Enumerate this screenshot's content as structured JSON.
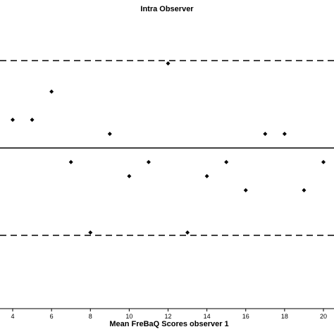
{
  "chart_data": {
    "type": "scatter",
    "title": "Intra Observer",
    "xlabel": "Mean FreBaQ Scores observer 1",
    "ylabel": "",
    "xlim": [
      3.4,
      20.3
    ],
    "ylim": [
      -6.0,
      6.0
    ],
    "x_ticks": [
      4,
      6,
      8,
      10,
      12,
      14,
      16,
      18,
      20
    ],
    "x_tick_labels": [
      "4",
      "6",
      "8",
      "10",
      "12",
      "14",
      "16",
      "18",
      "20"
    ],
    "reference_lines": [
      {
        "kind": "mean",
        "y": 0,
        "style": "solid"
      },
      {
        "kind": "upper-limit",
        "y": 3.1,
        "style": "dashed"
      },
      {
        "kind": "lower-limit",
        "y": -3.1,
        "style": "dashed"
      }
    ],
    "points": [
      {
        "x": 4,
        "y": 1
      },
      {
        "x": 5,
        "y": 1
      },
      {
        "x": 6,
        "y": 2
      },
      {
        "x": 7,
        "y": -0.5
      },
      {
        "x": 8,
        "y": -3
      },
      {
        "x": 9,
        "y": 0.5
      },
      {
        "x": 10,
        "y": -1
      },
      {
        "x": 11,
        "y": -0.5
      },
      {
        "x": 12,
        "y": 3
      },
      {
        "x": 13,
        "y": -3
      },
      {
        "x": 14,
        "y": -1
      },
      {
        "x": 15,
        "y": -0.5
      },
      {
        "x": 16,
        "y": -1.5
      },
      {
        "x": 17,
        "y": 0.5
      },
      {
        "x": 18,
        "y": 0.5
      },
      {
        "x": 19,
        "y": -1.5
      },
      {
        "x": 20,
        "y": -0.5
      }
    ],
    "marker": "diamond",
    "grid": false,
    "line_color": "#000000",
    "marker_color": "#000000"
  }
}
